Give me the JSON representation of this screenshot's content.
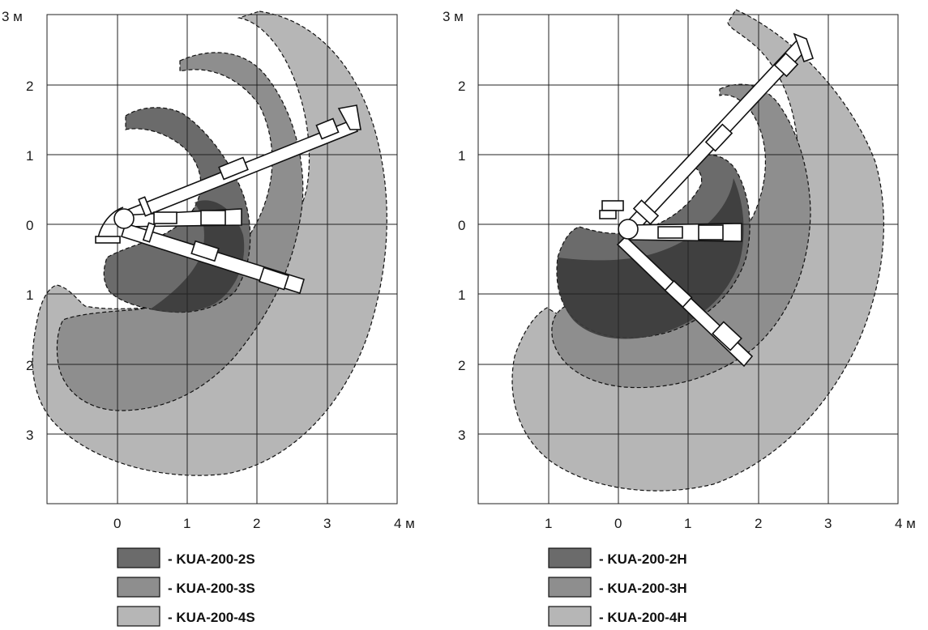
{
  "colors": {
    "zone2": "#6b6b6b",
    "zone3": "#8e8e8e",
    "zone4": "#b6b6b6",
    "zone2_overlap": "#3c3c3c"
  },
  "left_panel": {
    "y_ticks": [
      "3 м",
      "2",
      "1",
      "0",
      "1",
      "2",
      "3"
    ],
    "x_ticks": [
      "0",
      "1",
      "2",
      "3",
      "4 м"
    ],
    "legend": [
      {
        "label": "- KUA-200-2S",
        "color": "#6b6b6b"
      },
      {
        "label": "- KUA-200-3S",
        "color": "#8e8e8e"
      },
      {
        "label": "- KUA-200-4S",
        "color": "#b6b6b6"
      }
    ]
  },
  "right_panel": {
    "y_ticks": [
      "3 м",
      "2",
      "1",
      "0",
      "1",
      "2",
      "3"
    ],
    "x_ticks": [
      "1",
      "0",
      "1",
      "2",
      "3",
      "4 м"
    ],
    "legend": [
      {
        "label": "- KUA-200-2H",
        "color": "#6b6b6b"
      },
      {
        "label": "- KUA-200-3H",
        "color": "#8e8e8e"
      },
      {
        "label": "- KUA-200-4H",
        "color": "#b6b6b6"
      }
    ]
  }
}
